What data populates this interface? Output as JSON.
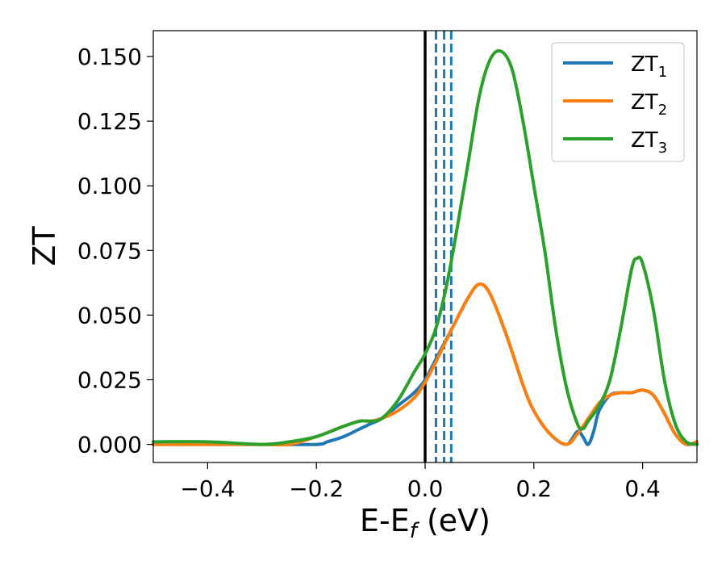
{
  "chart_data": {
    "type": "line",
    "title": "",
    "xlabel": {
      "main": "E-E",
      "sub": "f",
      "rest": " (eV)"
    },
    "ylabel": "ZT",
    "xlim": [
      -0.5,
      0.5
    ],
    "ylim": [
      -0.007,
      0.16
    ],
    "xticks": [
      -0.4,
      -0.2,
      0.0,
      0.2,
      0.4
    ],
    "xtick_labels": [
      "−0.4",
      "−0.2",
      "0.0",
      "0.2",
      "0.4"
    ],
    "yticks": [
      0.0,
      0.025,
      0.05,
      0.075,
      0.1,
      0.125,
      0.15
    ],
    "ytick_labels": [
      "0.000",
      "0.025",
      "0.050",
      "0.075",
      "0.100",
      "0.125",
      "0.150"
    ],
    "grid": false,
    "legend_position": "top-right",
    "vlines": [
      {
        "x": 0.0,
        "style": "solid",
        "color": "#000000"
      },
      {
        "x": 0.02,
        "style": "dashed",
        "color": "#1f77b4"
      },
      {
        "x": 0.035,
        "style": "dashed",
        "color": "#1f77b4"
      },
      {
        "x": 0.048,
        "style": "dashed",
        "color": "#1f77b4"
      }
    ],
    "series": [
      {
        "name": "ZT",
        "name_sub": "1",
        "color": "#1f77b4",
        "x": [
          -0.5,
          -0.4,
          -0.3,
          -0.2,
          -0.18,
          -0.15,
          -0.12,
          -0.1,
          -0.08,
          -0.05,
          -0.02,
          0.0,
          0.02,
          0.05,
          0.08,
          0.1,
          0.12,
          0.15,
          0.18,
          0.2,
          0.23,
          0.26,
          0.28,
          0.29,
          0.3,
          0.31,
          0.32,
          0.34,
          0.36,
          0.38,
          0.4,
          0.42,
          0.44,
          0.46,
          0.48,
          0.5
        ],
        "y": [
          0.0,
          0.0,
          0.0,
          0.0,
          0.001,
          0.003,
          0.006,
          0.008,
          0.01,
          0.015,
          0.02,
          0.025,
          0.033,
          0.045,
          0.057,
          0.062,
          0.058,
          0.042,
          0.023,
          0.013,
          0.004,
          0.0,
          0.005,
          0.003,
          0.0,
          0.005,
          0.013,
          0.019,
          0.02,
          0.02,
          0.021,
          0.019,
          0.012,
          0.004,
          0.0,
          0.001
        ]
      },
      {
        "name": "ZT",
        "name_sub": "2",
        "color": "#ff7f0e",
        "x": [
          -0.5,
          -0.4,
          -0.3,
          -0.25,
          -0.2,
          -0.15,
          -0.12,
          -0.1,
          -0.08,
          -0.05,
          -0.02,
          0.0,
          0.02,
          0.05,
          0.08,
          0.1,
          0.12,
          0.15,
          0.18,
          0.2,
          0.23,
          0.26,
          0.28,
          0.3,
          0.32,
          0.34,
          0.36,
          0.38,
          0.4,
          0.42,
          0.44,
          0.46,
          0.48,
          0.5
        ],
        "y": [
          0.0,
          0.0,
          0.0,
          0.0,
          0.003,
          0.007,
          0.009,
          0.009,
          0.01,
          0.013,
          0.018,
          0.024,
          0.032,
          0.045,
          0.057,
          0.062,
          0.058,
          0.042,
          0.023,
          0.013,
          0.004,
          0.0,
          0.004,
          0.01,
          0.016,
          0.019,
          0.02,
          0.02,
          0.021,
          0.019,
          0.012,
          0.004,
          0.0,
          0.001
        ]
      },
      {
        "name": "ZT",
        "name_sub": "3",
        "color": "#2ca02c",
        "x": [
          -0.5,
          -0.4,
          -0.3,
          -0.25,
          -0.2,
          -0.15,
          -0.12,
          -0.1,
          -0.08,
          -0.05,
          -0.02,
          0.0,
          0.02,
          0.04,
          0.06,
          0.08,
          0.1,
          0.12,
          0.14,
          0.16,
          0.18,
          0.2,
          0.22,
          0.24,
          0.26,
          0.28,
          0.29,
          0.3,
          0.32,
          0.34,
          0.36,
          0.38,
          0.39,
          0.4,
          0.42,
          0.44,
          0.46,
          0.48,
          0.5
        ],
        "y": [
          0.001,
          0.001,
          0.0,
          0.001,
          0.003,
          0.007,
          0.009,
          0.009,
          0.01,
          0.017,
          0.028,
          0.035,
          0.045,
          0.062,
          0.085,
          0.11,
          0.135,
          0.149,
          0.152,
          0.145,
          0.125,
          0.1,
          0.075,
          0.045,
          0.022,
          0.008,
          0.006,
          0.009,
          0.015,
          0.025,
          0.045,
          0.068,
          0.072,
          0.07,
          0.052,
          0.025,
          0.008,
          0.001,
          0.0
        ]
      }
    ]
  }
}
